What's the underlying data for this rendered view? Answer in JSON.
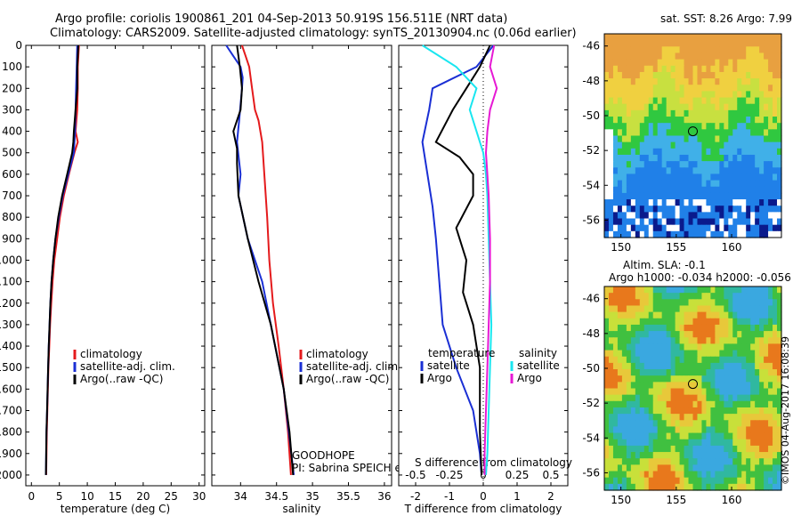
{
  "header": {
    "title_line1": "Argo profile: coriolis 1900861_201 04-Sep-2013 50.919S 156.511E (NRT data)",
    "title_line2": "Climatology: CARS2009. Satellite-adjusted climatology: synTS_20130904.nc (0.06d earlier)"
  },
  "colors": {
    "climatology": "#e41a1c",
    "satellite": "#1a2fd4",
    "argo": "#000000",
    "sal_satellite": "#19e6f0",
    "sal_argo": "#e619d4"
  },
  "chart_data": [
    {
      "id": "temperature",
      "type": "line",
      "xlabel": "temperature (deg C)",
      "xlim": [
        -1,
        31
      ],
      "xticks": [
        0,
        5,
        10,
        15,
        20,
        25,
        30
      ],
      "ylim": [
        2050,
        0
      ],
      "yticks": [
        0,
        100,
        200,
        300,
        400,
        500,
        600,
        700,
        800,
        900,
        1000,
        1100,
        1200,
        1300,
        1400,
        1500,
        1600,
        1700,
        1800,
        1900,
        2000
      ],
      "legend": [
        "climatology",
        "satellite-adj. clim.",
        "Argo(..raw -QC)"
      ],
      "series": [
        {
          "name": "climatology",
          "x": [
            8.5,
            8.3,
            8.3,
            8.2,
            7.9,
            8.3,
            7.7,
            6.7,
            5.8,
            5.1,
            4.6,
            4.1,
            3.8,
            3.55,
            3.35,
            3.2,
            3.05,
            2.95,
            2.85,
            2.75,
            2.65
          ],
          "y": [
            0,
            100,
            200,
            300,
            400,
            450,
            500,
            600,
            700,
            800,
            900,
            1000,
            1100,
            1200,
            1300,
            1400,
            1500,
            1600,
            1700,
            1800,
            2000
          ]
        },
        {
          "name": "satellite-adj. clim.",
          "x": [
            8.2,
            8.1,
            8.0,
            7.9,
            7.8,
            7.7,
            7.6,
            6.6,
            5.6,
            4.9,
            4.3,
            3.9,
            3.6,
            3.4,
            3.25,
            3.1,
            3.0,
            2.9,
            2.8,
            2.7,
            2.6
          ],
          "y": [
            0,
            100,
            200,
            300,
            400,
            450,
            500,
            600,
            700,
            800,
            900,
            1000,
            1100,
            1200,
            1300,
            1400,
            1500,
            1600,
            1700,
            1800,
            2000
          ]
        },
        {
          "name": "Argo(..raw -QC)",
          "x": [
            8.4,
            8.2,
            8.2,
            7.9,
            7.6,
            7.5,
            7.3,
            6.4,
            5.5,
            4.8,
            4.3,
            3.9,
            3.6,
            3.4,
            3.25,
            3.1,
            3.0,
            2.9,
            2.8,
            2.7,
            2.6
          ],
          "y": [
            0,
            100,
            200,
            300,
            400,
            450,
            500,
            600,
            700,
            800,
            900,
            1000,
            1100,
            1200,
            1300,
            1400,
            1500,
            1600,
            1700,
            1800,
            2000
          ]
        }
      ]
    },
    {
      "id": "salinity",
      "type": "line",
      "xlabel": "salinity",
      "xlim": [
        33.6,
        36.1
      ],
      "xticks": [
        34,
        34.5,
        35,
        35.5,
        36
      ],
      "xticklabels": [
        "34",
        "34.5",
        "35",
        "35.5",
        "36"
      ],
      "ylim": [
        2050,
        0
      ],
      "legend": [
        "climatology",
        "satellite-adj. clim.",
        "Argo(..raw -QC)"
      ],
      "annotations": [
        "GOODHOPE",
        "PI: Sabrina SPEICH et Michel ARHAN"
      ],
      "series": [
        {
          "name": "climatology",
          "x": [
            34.02,
            34.07,
            34.12,
            34.16,
            34.2,
            34.25,
            34.3,
            34.33,
            34.37,
            34.4,
            34.45,
            34.53,
            34.6,
            34.66,
            34.7
          ],
          "y": [
            0,
            50,
            100,
            200,
            300,
            350,
            450,
            600,
            800,
            1000,
            1200,
            1400,
            1600,
            1800,
            2000
          ]
        },
        {
          "name": "satellite-adj. clim.",
          "x": [
            33.8,
            33.9,
            34.0,
            34.03,
            34.02,
            33.98,
            33.95,
            34.0,
            33.97,
            34.1,
            34.3,
            34.42,
            34.6,
            34.67,
            34.74
          ],
          "y": [
            0,
            50,
            100,
            150,
            200,
            350,
            450,
            600,
            700,
            900,
            1100,
            1300,
            1600,
            1800,
            2000
          ]
        },
        {
          "name": "Argo(..raw -QC)",
          "x": [
            33.95,
            33.97,
            33.99,
            34.02,
            34.0,
            33.9,
            33.95,
            33.95,
            33.97,
            34.1,
            34.25,
            34.42,
            34.6,
            34.68,
            34.73
          ],
          "y": [
            0,
            50,
            100,
            200,
            300,
            400,
            480,
            550,
            700,
            900,
            1100,
            1300,
            1600,
            1800,
            2000
          ]
        }
      ]
    },
    {
      "id": "difference",
      "type": "line",
      "xlabel": "T difference from climatology",
      "xlabel2": "S difference from climatology",
      "xlim": [
        -2.5,
        2.5
      ],
      "xticks": [
        -2,
        -1,
        0,
        1,
        2
      ],
      "s_ticks": [
        -0.5,
        -0.25,
        0,
        0.25,
        0.5
      ],
      "s_ticklabels": [
        "-0.5",
        "-0.25",
        "0",
        "0.25",
        "0.5"
      ],
      "ylim": [
        2050,
        0
      ],
      "legend_temperature": {
        "header": "temperature",
        "items": [
          "satellite",
          "Argo"
        ]
      },
      "legend_salinity": {
        "header": "salinity",
        "items": [
          "satellite",
          "Argo"
        ]
      },
      "series": [
        {
          "name": "T satellite",
          "x": [
            0.3,
            -0.2,
            -1.5,
            -1.6,
            -1.8,
            -1.7,
            -1.6,
            -1.5,
            -1.4,
            -1.3,
            -1.2,
            -0.8,
            -0.3,
            -0.1,
            -0.05
          ],
          "y": [
            0,
            100,
            200,
            300,
            450,
            550,
            650,
            750,
            900,
            1100,
            1300,
            1500,
            1700,
            1900,
            2000
          ]
        },
        {
          "name": "T Argo",
          "x": [
            0.2,
            -0.1,
            -0.5,
            -0.9,
            -1.4,
            -0.7,
            -0.3,
            -0.3,
            -0.8,
            -0.5,
            -0.6,
            -0.3,
            -0.1,
            -0.1,
            -0.05
          ],
          "y": [
            0,
            100,
            200,
            300,
            450,
            520,
            600,
            700,
            850,
            1000,
            1150,
            1300,
            1500,
            1800,
            2000
          ]
        },
        {
          "name": "S satellite",
          "x": [
            -0.45,
            -0.2,
            -0.05,
            -0.1,
            -0.05,
            0.0,
            0.02,
            0.03,
            0.04,
            0.05,
            0.06,
            0.05,
            0.04,
            0.03,
            0.02
          ],
          "y": [
            0,
            100,
            200,
            300,
            400,
            500,
            600,
            700,
            900,
            1100,
            1300,
            1500,
            1700,
            1900,
            2000
          ]
        },
        {
          "name": "S Argo",
          "x": [
            0.08,
            0.05,
            0.1,
            0.05,
            0.03,
            0.02,
            0.03,
            0.04,
            0.05,
            0.05,
            0.04,
            0.03,
            0.02,
            0.01,
            0.01
          ],
          "y": [
            0,
            100,
            200,
            300,
            400,
            500,
            600,
            700,
            900,
            1100,
            1300,
            1500,
            1700,
            1900,
            2000
          ]
        }
      ]
    },
    {
      "id": "sst_map",
      "type": "heatmap",
      "title": "sat. SST: 8.26 Argo: 7.99",
      "xticks": [
        150,
        155,
        160
      ],
      "yticks": [
        -46,
        -48,
        -50,
        -52,
        -54,
        -56
      ],
      "xlim": [
        148.5,
        164.5
      ],
      "ylim": [
        -57,
        -45.3
      ],
      "marker": [
        156.5,
        -50.9
      ]
    },
    {
      "id": "sla_map",
      "type": "heatmap",
      "title": "Altim. SLA: -0.1",
      "subtitle": "Argo h1000: -0.034 h2000: -0.056",
      "xticks": [
        150,
        155,
        160
      ],
      "yticks": [
        -46,
        -48,
        -50,
        -52,
        -54,
        -56
      ],
      "xlim": [
        148.5,
        164.5
      ],
      "ylim": [
        -57,
        -45.3
      ],
      "marker": [
        156.5,
        -50.9
      ]
    }
  ],
  "watermark": "©IMOS 04-Aug-2017 16:08:39"
}
